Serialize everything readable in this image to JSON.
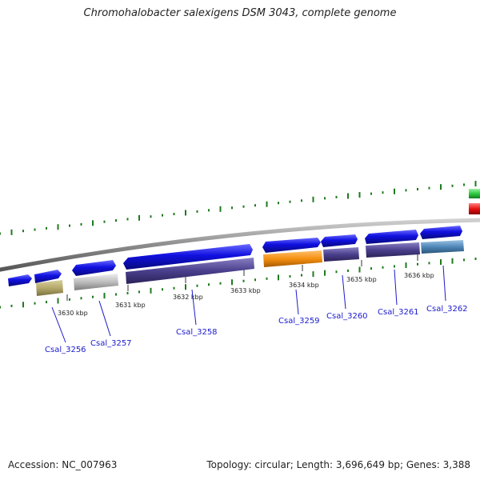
{
  "title": "Chromohalobacter salexigens DSM 3043, complete genome",
  "footer": {
    "accession": "Accession: NC_007963",
    "summary": "Topology: circular; Length: 3,696,649 bp; Genes: 3,388"
  },
  "ticks": [
    "3630 kbp",
    "3631 kbp",
    "3632 kbp",
    "3633 kbp",
    "3634 kbp",
    "3635 kbp",
    "3636 kbp"
  ],
  "genes": [
    "Csal_3256",
    "Csal_3257",
    "Csal_3258",
    "Csal_3259",
    "Csal_3260",
    "Csal_3261",
    "Csal_3262"
  ],
  "colors": {
    "forward_cds": "#1010e0",
    "feature_purple": "#4a3f8c",
    "feature_khaki": "#b5a96a",
    "feature_gray": "#bdbdbd",
    "feature_orange": "#f5900f",
    "feature_steel": "#4f87b8",
    "feature_green": "#2ecc40",
    "feature_red": "#e81010",
    "gc_dots": "#1e7a1e",
    "backbone": "#8c8c8c",
    "label_blue": "#1a1acc"
  }
}
